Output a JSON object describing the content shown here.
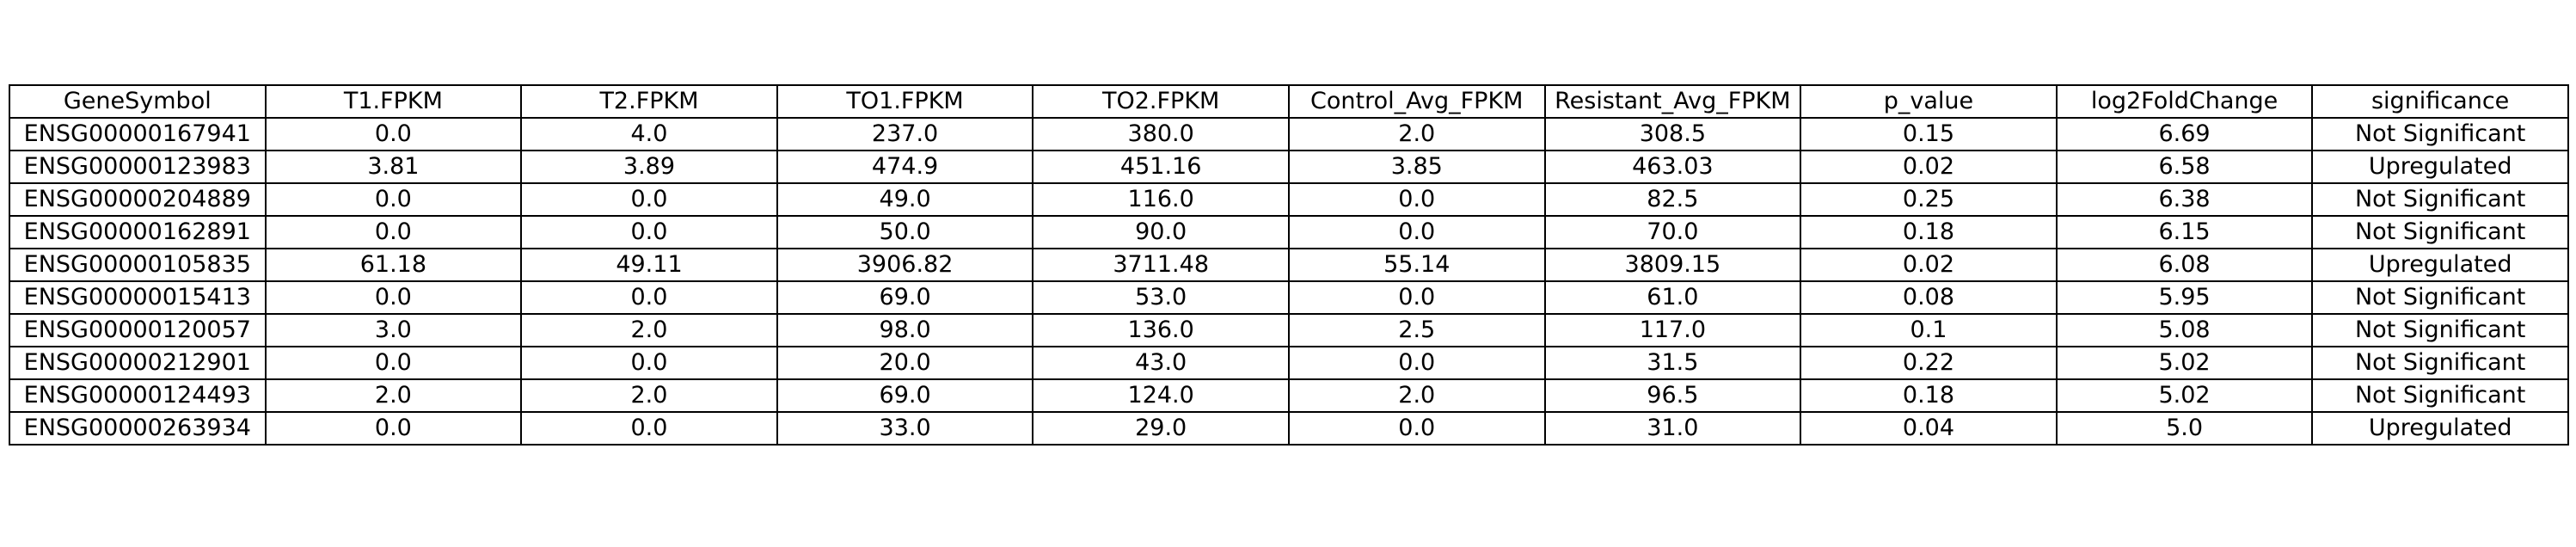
{
  "chart_data": {
    "type": "table",
    "columns": [
      "GeneSymbol",
      "T1.FPKM",
      "T2.FPKM",
      "TO1.FPKM",
      "TO2.FPKM",
      "Control_Avg_FPKM",
      "Resistant_Avg_FPKM",
      "p_value",
      "log2FoldChange",
      "significance"
    ],
    "rows": [
      [
        "ENSG00000167941",
        "0.0",
        "4.0",
        "237.0",
        "380.0",
        "2.0",
        "308.5",
        "0.15",
        "6.69",
        "Not Significant"
      ],
      [
        "ENSG00000123983",
        "3.81",
        "3.89",
        "474.9",
        "451.16",
        "3.85",
        "463.03",
        "0.02",
        "6.58",
        "Upregulated"
      ],
      [
        "ENSG00000204889",
        "0.0",
        "0.0",
        "49.0",
        "116.0",
        "0.0",
        "82.5",
        "0.25",
        "6.38",
        "Not Significant"
      ],
      [
        "ENSG00000162891",
        "0.0",
        "0.0",
        "50.0",
        "90.0",
        "0.0",
        "70.0",
        "0.18",
        "6.15",
        "Not Significant"
      ],
      [
        "ENSG00000105835",
        "61.18",
        "49.11",
        "3906.82",
        "3711.48",
        "55.14",
        "3809.15",
        "0.02",
        "6.08",
        "Upregulated"
      ],
      [
        "ENSG00000015413",
        "0.0",
        "0.0",
        "69.0",
        "53.0",
        "0.0",
        "61.0",
        "0.08",
        "5.95",
        "Not Significant"
      ],
      [
        "ENSG00000120057",
        "3.0",
        "2.0",
        "98.0",
        "136.0",
        "2.5",
        "117.0",
        "0.1",
        "5.08",
        "Not Significant"
      ],
      [
        "ENSG00000212901",
        "0.0",
        "0.0",
        "20.0",
        "43.0",
        "0.0",
        "31.5",
        "0.22",
        "5.02",
        "Not Significant"
      ],
      [
        "ENSG00000124493",
        "2.0",
        "2.0",
        "69.0",
        "124.0",
        "2.0",
        "96.5",
        "0.18",
        "5.02",
        "Not Significant"
      ],
      [
        "ENSG00000263934",
        "0.0",
        "0.0",
        "33.0",
        "29.0",
        "0.0",
        "31.0",
        "0.04",
        "5.0",
        "Upregulated"
      ]
    ]
  }
}
